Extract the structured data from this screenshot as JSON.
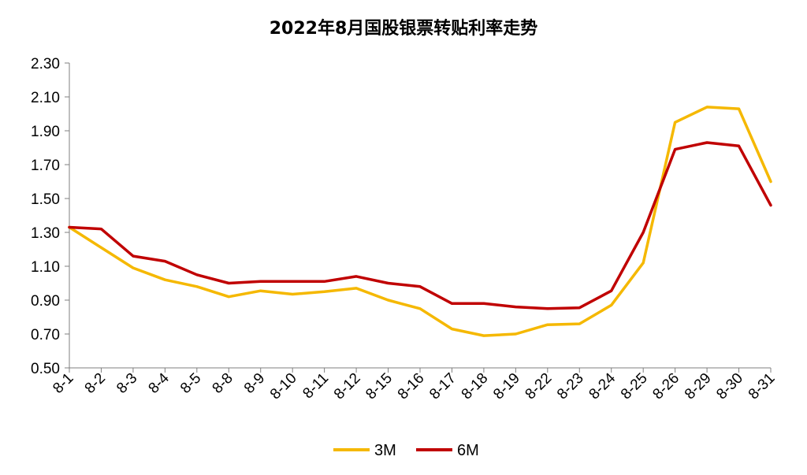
{
  "chart_data": {
    "type": "line",
    "title": "2022年8月国股银票转贴利率走势",
    "xlabel": "",
    "ylabel": "",
    "ylim": [
      0.5,
      2.3
    ],
    "yticks": [
      "0.50",
      "0.70",
      "0.90",
      "1.10",
      "1.30",
      "1.50",
      "1.70",
      "1.90",
      "2.10",
      "2.30"
    ],
    "yticks_values": [
      0.5,
      0.7,
      0.9,
      1.1,
      1.3,
      1.5,
      1.7,
      1.9,
      2.1,
      2.3
    ],
    "categories": [
      "8-1",
      "8-2",
      "8-3",
      "8-4",
      "8-5",
      "8-8",
      "8-9",
      "8-10",
      "8-11",
      "8-12",
      "8-15",
      "8-16",
      "8-17",
      "8-18",
      "8-19",
      "8-22",
      "8-23",
      "8-24",
      "8-25",
      "8-26",
      "8-29",
      "8-30",
      "8-31"
    ],
    "series": [
      {
        "name": "3M",
        "color": "#F5B800",
        "values": [
          1.33,
          1.21,
          1.09,
          1.02,
          0.98,
          0.92,
          0.955,
          0.935,
          0.95,
          0.97,
          0.9,
          0.85,
          0.73,
          0.69,
          0.7,
          0.755,
          0.76,
          0.87,
          1.12,
          1.95,
          2.04,
          2.03,
          1.6
        ]
      },
      {
        "name": "6M",
        "color": "#C00000",
        "values": [
          1.33,
          1.32,
          1.16,
          1.13,
          1.05,
          1.0,
          1.01,
          1.01,
          1.01,
          1.04,
          1.0,
          0.98,
          0.88,
          0.88,
          0.86,
          0.85,
          0.855,
          0.955,
          1.3,
          1.79,
          1.83,
          1.81,
          1.46
        ]
      }
    ],
    "grid": false,
    "legend_position": "bottom"
  }
}
